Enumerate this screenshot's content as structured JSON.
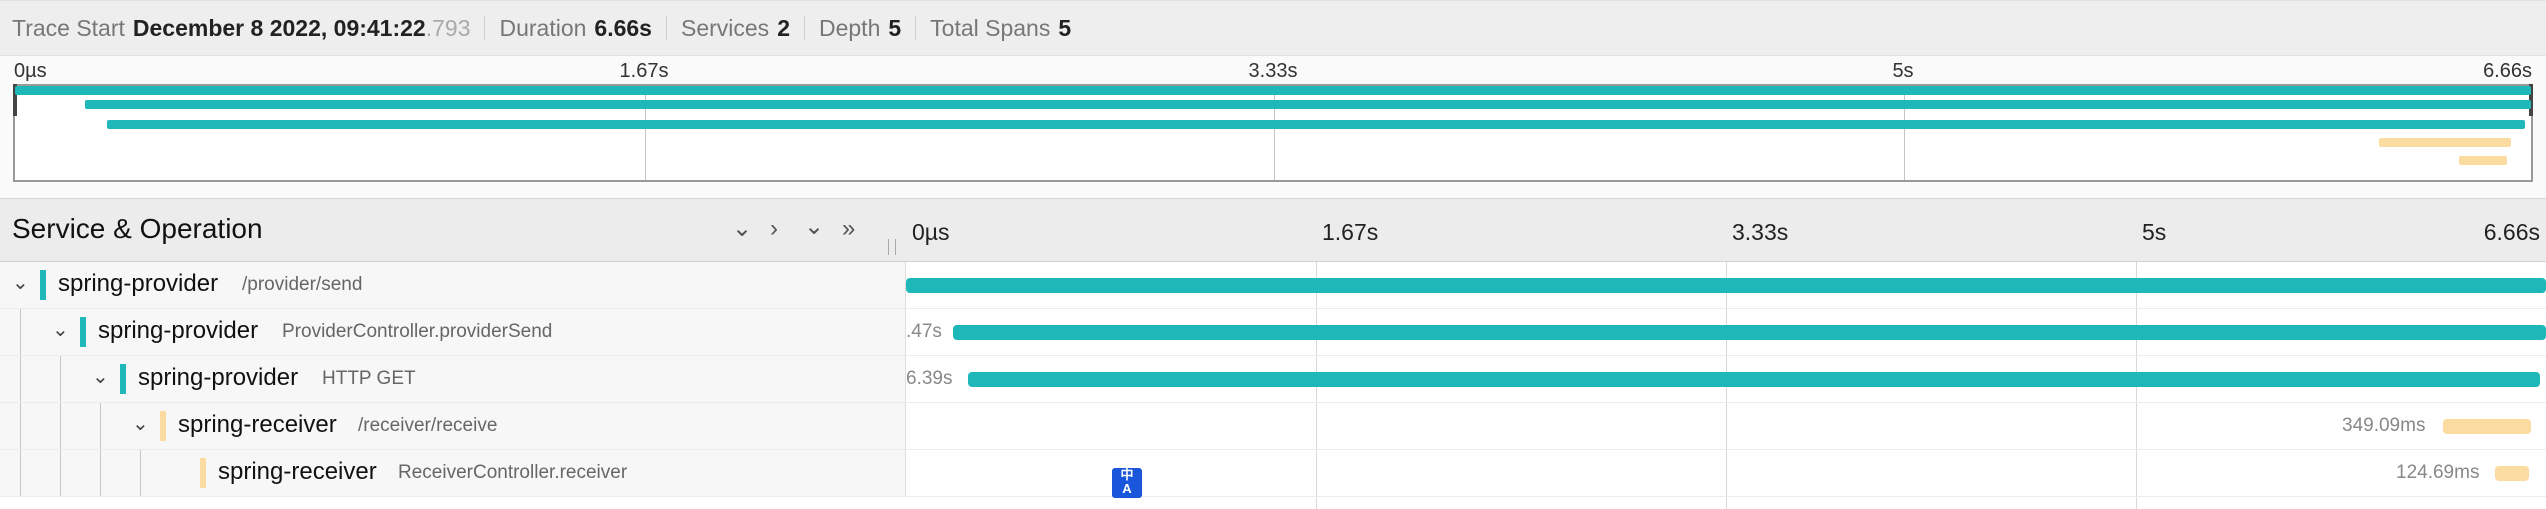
{
  "header": {
    "trace_start_label": "Trace Start",
    "trace_start_value": "December 8 2022, 09:41:22",
    "trace_start_ms": ".793",
    "duration_label": "Duration",
    "duration_value": "6.66s",
    "services_label": "Services",
    "services_value": "2",
    "depth_label": "Depth",
    "depth_value": "5",
    "spans_label": "Total Spans",
    "spans_value": "5"
  },
  "minimap": {
    "ticks": [
      "0µs",
      "1.67s",
      "3.33s",
      "5s",
      "6.66s"
    ]
  },
  "timeline": {
    "title": "Service & Operation",
    "controls": [
      "collapse-one",
      "expand-one",
      "collapse-all",
      "expand-all"
    ],
    "ticks": [
      "0µs",
      "1.67s",
      "3.33s",
      "5s",
      "6.66s"
    ]
  },
  "colors": {
    "provider": "#1fb8b8",
    "receiver": "#fbdba0"
  },
  "spans": [
    {
      "service": "spring-provider",
      "operation": "/provider/send",
      "depth": 0,
      "label": ""
    },
    {
      "service": "spring-provider",
      "operation": "ProviderController.providerSend",
      "depth": 1,
      "label": ".47s"
    },
    {
      "service": "spring-provider",
      "operation": "HTTP GET",
      "depth": 2,
      "label": "6.39s"
    },
    {
      "service": "spring-receiver",
      "operation": "/receiver/receive",
      "depth": 3,
      "label": "349.09ms"
    },
    {
      "service": "spring-receiver",
      "operation": "ReceiverController.receiver",
      "depth": 4,
      "label": "124.69ms"
    }
  ],
  "translate_icon": "translate-icon"
}
